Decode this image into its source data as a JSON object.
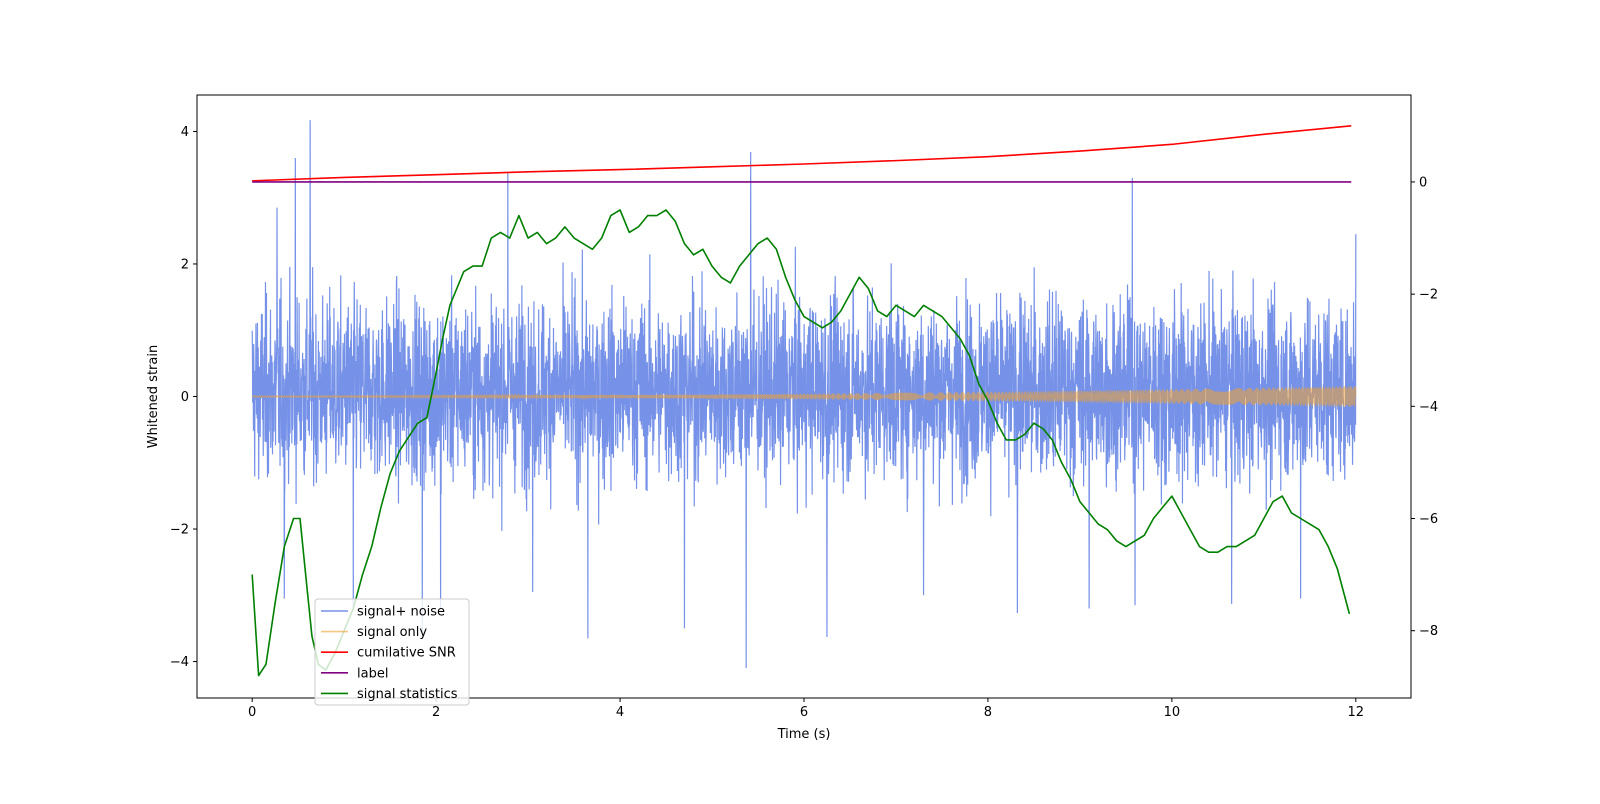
{
  "chart_data": {
    "type": "line",
    "title": "",
    "xlabel": "Time (s)",
    "ylabel": "Whitened strain",
    "y2label": "",
    "xlim": [
      -0.6,
      12.6
    ],
    "ylim": [
      -4.55,
      4.55
    ],
    "y2lim": [
      -9.2,
      1.55
    ],
    "x_ticks": [
      0,
      2,
      4,
      6,
      8,
      10,
      12
    ],
    "y_ticks": [
      -4,
      -2,
      0,
      2,
      4
    ],
    "y2_ticks": [
      -8,
      -6,
      -4,
      -2,
      0
    ],
    "grid": false,
    "legend": {
      "position": "lower-left",
      "entries": [
        "signal+ noise",
        "signal only",
        "cumilative SNR",
        "label",
        "signal statistics"
      ]
    },
    "series": [
      {
        "name": "signal+ noise",
        "axis": "left",
        "color": "#6a89e6",
        "style": "noise band",
        "x_range": [
          0,
          12
        ],
        "typical_range": [
          -1.2,
          1.4
        ],
        "spikes": [
          [
            0.47,
            3.6
          ],
          [
            0.63,
            4.17
          ],
          [
            0.27,
            2.85
          ],
          [
            2.78,
            3.37
          ],
          [
            5.42,
            3.69
          ],
          [
            5.37,
            -4.1
          ],
          [
            9.57,
            3.3
          ],
          [
            1.85,
            -3.65
          ],
          [
            3.65,
            -3.65
          ],
          [
            4.7,
            -3.5
          ],
          [
            6.25,
            -3.63
          ],
          [
            8.32,
            -3.27
          ],
          [
            9.1,
            -3.2
          ],
          [
            9.6,
            -3.15
          ],
          [
            10.65,
            -3.13
          ],
          [
            11.4,
            -3.05
          ],
          [
            0.35,
            -3.05
          ],
          [
            1.1,
            -3.2
          ],
          [
            2.05,
            -3.2
          ],
          [
            3.05,
            -2.95
          ],
          [
            7.3,
            -3.0
          ],
          [
            12.0,
            2.45
          ]
        ]
      },
      {
        "name": "signal only",
        "axis": "left",
        "color": "#f0a030",
        "style": "chirp",
        "x_range": [
          0,
          12
        ],
        "amplitude_start": 0.01,
        "amplitude_end": 0.16
      },
      {
        "name": "cumilative SNR",
        "axis": "right",
        "color": "#ff0000",
        "x": [
          0,
          1,
          2,
          3,
          4,
          5,
          6,
          7,
          8,
          9,
          10,
          11,
          11.95
        ],
        "y": [
          0.02,
          0.08,
          0.13,
          0.18,
          0.22,
          0.27,
          0.32,
          0.38,
          0.45,
          0.55,
          0.67,
          0.85,
          1.0
        ]
      },
      {
        "name": "label",
        "axis": "right",
        "color": "#800080",
        "x": [
          0,
          11.95
        ],
        "y": [
          0,
          0
        ]
      },
      {
        "name": "signal statistics",
        "axis": "right",
        "color": "#008000",
        "x": [
          0.0,
          0.07,
          0.15,
          0.25,
          0.35,
          0.45,
          0.52,
          0.6,
          0.65,
          0.72,
          0.8,
          0.9,
          1.0,
          1.1,
          1.2,
          1.3,
          1.4,
          1.5,
          1.6,
          1.7,
          1.8,
          1.9,
          2.0,
          2.07,
          2.15,
          2.2,
          2.3,
          2.4,
          2.5,
          2.6,
          2.7,
          2.8,
          2.9,
          3.0,
          3.1,
          3.2,
          3.3,
          3.4,
          3.5,
          3.6,
          3.7,
          3.8,
          3.9,
          4.0,
          4.1,
          4.2,
          4.3,
          4.4,
          4.5,
          4.6,
          4.7,
          4.8,
          4.9,
          5.0,
          5.1,
          5.2,
          5.3,
          5.4,
          5.5,
          5.6,
          5.7,
          5.8,
          5.9,
          6.0,
          6.1,
          6.2,
          6.3,
          6.4,
          6.5,
          6.6,
          6.7,
          6.8,
          6.9,
          7.0,
          7.1,
          7.2,
          7.3,
          7.4,
          7.5,
          7.6,
          7.7,
          7.8,
          7.9,
          8.0,
          8.1,
          8.2,
          8.3,
          8.4,
          8.5,
          8.6,
          8.7,
          8.8,
          8.9,
          9.0,
          9.1,
          9.2,
          9.3,
          9.4,
          9.5,
          9.6,
          9.7,
          9.8,
          9.9,
          10.0,
          10.1,
          10.2,
          10.3,
          10.4,
          10.5,
          10.6,
          10.7,
          10.8,
          10.9,
          11.0,
          11.1,
          11.2,
          11.3,
          11.4,
          11.5,
          11.6,
          11.7,
          11.8,
          11.93
        ],
        "y": [
          -7.0,
          -8.8,
          -8.6,
          -7.5,
          -6.5,
          -6.0,
          -6.0,
          -7.3,
          -8.1,
          -8.6,
          -8.7,
          -8.4,
          -8.0,
          -7.6,
          -7.0,
          -6.5,
          -5.8,
          -5.2,
          -4.8,
          -4.55,
          -4.3,
          -4.2,
          -3.4,
          -2.8,
          -2.2,
          -2.0,
          -1.6,
          -1.5,
          -1.5,
          -1.0,
          -0.9,
          -1.0,
          -0.6,
          -1.0,
          -0.9,
          -1.1,
          -1.0,
          -0.8,
          -1.0,
          -1.1,
          -1.2,
          -1.0,
          -0.6,
          -0.5,
          -0.9,
          -0.8,
          -0.6,
          -0.6,
          -0.5,
          -0.7,
          -1.1,
          -1.3,
          -1.2,
          -1.5,
          -1.7,
          -1.8,
          -1.5,
          -1.3,
          -1.1,
          -1.0,
          -1.2,
          -1.7,
          -2.1,
          -2.4,
          -2.5,
          -2.6,
          -2.5,
          -2.3,
          -2.0,
          -1.7,
          -1.9,
          -2.3,
          -2.4,
          -2.2,
          -2.3,
          -2.4,
          -2.2,
          -2.3,
          -2.4,
          -2.6,
          -2.8,
          -3.1,
          -3.6,
          -3.9,
          -4.3,
          -4.6,
          -4.6,
          -4.5,
          -4.3,
          -4.4,
          -4.6,
          -5.0,
          -5.3,
          -5.7,
          -5.9,
          -6.1,
          -6.2,
          -6.4,
          -6.5,
          -6.4,
          -6.3,
          -6.0,
          -5.8,
          -5.6,
          -5.9,
          -6.2,
          -6.5,
          -6.6,
          -6.6,
          -6.5,
          -6.5,
          -6.4,
          -6.3,
          -6.0,
          -5.7,
          -5.6,
          -5.9,
          -6.0,
          -6.1,
          -6.2,
          -6.5,
          -6.9,
          -7.7
        ]
      }
    ]
  }
}
